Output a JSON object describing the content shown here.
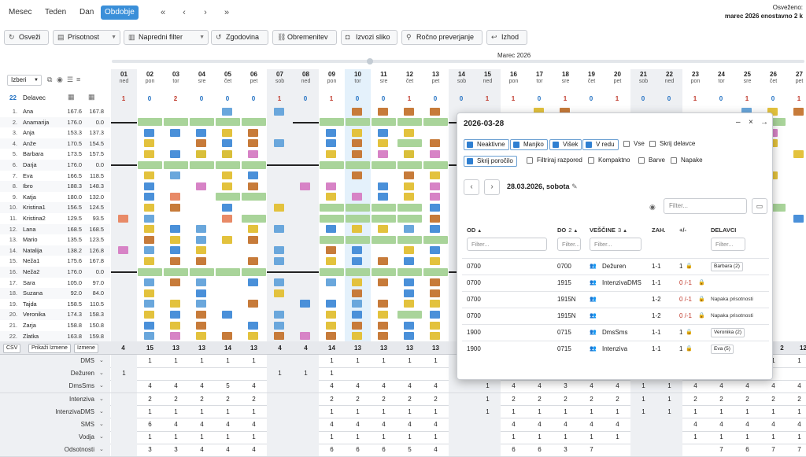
{
  "view_tabs": [
    "Mesec",
    "Teden",
    "Dan",
    "Obdobje"
  ],
  "active_tab": "Obdobje",
  "nav": [
    "«",
    "‹",
    "›",
    "»"
  ],
  "refresh": {
    "label": "Osveženo:",
    "value": "marec 2026 enostavno 2 k"
  },
  "toolbar": {
    "buttons": [
      {
        "label": "Osveži",
        "icon": "refresh-icon"
      },
      {
        "label": "Prisotnost",
        "icon": "document-icon",
        "dropdown": true
      },
      {
        "label": "Napredni filter",
        "icon": "filter-icon",
        "dropdown": true
      },
      {
        "label": "Zgodovina",
        "icon": "history-icon"
      },
      {
        "label": "Obremenitev",
        "icon": "load-icon"
      },
      {
        "label": "Izvozi sliko",
        "icon": "camera-icon"
      },
      {
        "label": "Ročno preverjanje",
        "icon": "check-icon"
      },
      {
        "label": "Izhod",
        "icon": "exit-icon"
      }
    ]
  },
  "month_label": "Marec 2026",
  "grid_header": {
    "select_label": "Izberi",
    "count": "22",
    "employee_col": "Delavec"
  },
  "days": [
    {
      "d": "01",
      "w": "ned"
    },
    {
      "d": "02",
      "w": "pon"
    },
    {
      "d": "03",
      "w": "tor"
    },
    {
      "d": "04",
      "w": "sre"
    },
    {
      "d": "05",
      "w": "čet"
    },
    {
      "d": "06",
      "w": "pet"
    },
    {
      "d": "07",
      "w": "sob"
    },
    {
      "d": "08",
      "w": "ned"
    },
    {
      "d": "09",
      "w": "pon"
    },
    {
      "d": "10",
      "w": "tor"
    },
    {
      "d": "11",
      "w": "sre"
    },
    {
      "d": "12",
      "w": "čet"
    },
    {
      "d": "13",
      "w": "pet"
    },
    {
      "d": "14",
      "w": "sob"
    },
    {
      "d": "15",
      "w": "ned"
    },
    {
      "d": "16",
      "w": "pon"
    },
    {
      "d": "17",
      "w": "tor"
    },
    {
      "d": "18",
      "w": "sre"
    },
    {
      "d": "19",
      "w": "čet"
    },
    {
      "d": "20",
      "w": "pet"
    },
    {
      "d": "21",
      "w": "sob"
    },
    {
      "d": "22",
      "w": "ned"
    },
    {
      "d": "23",
      "w": "pon"
    },
    {
      "d": "24",
      "w": "tor"
    },
    {
      "d": "25",
      "w": "sre"
    },
    {
      "d": "26",
      "w": "čet"
    },
    {
      "d": "27",
      "w": "pet"
    }
  ],
  "day_counts": [
    "1",
    "0",
    "2",
    "0",
    "0",
    "0",
    "1",
    "0",
    "1",
    "0",
    "0",
    "1",
    "0",
    "0",
    "1",
    "1",
    "0",
    "1",
    "0",
    "1",
    "0",
    "0",
    "1",
    "0",
    "1",
    "0",
    "1"
  ],
  "employees": [
    {
      "no": "1.",
      "name": "Ana",
      "h1": "167.6",
      "h2": "167.8"
    },
    {
      "no": "2.",
      "name": "Anamarija",
      "h1": "176.0",
      "h2": "0.0"
    },
    {
      "no": "3.",
      "name": "Anja",
      "h1": "153.3",
      "h2": "137.3"
    },
    {
      "no": "4.",
      "name": "Anže",
      "h1": "170.5",
      "h2": "154.5"
    },
    {
      "no": "5.",
      "name": "Barbara",
      "h1": "173.5",
      "h2": "157.5"
    },
    {
      "no": "6.",
      "name": "Darja",
      "h1": "176.0",
      "h2": "0.0"
    },
    {
      "no": "7.",
      "name": "Eva",
      "h1": "166.5",
      "h2": "118.5"
    },
    {
      "no": "8.",
      "name": "Ibro",
      "h1": "188.3",
      "h2": "148.3"
    },
    {
      "no": "9.",
      "name": "Katja",
      "h1": "180.0",
      "h2": "132.0"
    },
    {
      "no": "10.",
      "name": "Kristina1",
      "h1": "156.5",
      "h2": "124.5"
    },
    {
      "no": "11.",
      "name": "Kristina2",
      "h1": "129.5",
      "h2": "93.5"
    },
    {
      "no": "12.",
      "name": "Lana",
      "h1": "168.5",
      "h2": "168.5"
    },
    {
      "no": "13.",
      "name": "Mario",
      "h1": "135.5",
      "h2": "123.5"
    },
    {
      "no": "14.",
      "name": "Natalija",
      "h1": "138.2",
      "h2": "126.8"
    },
    {
      "no": "15.",
      "name": "Neža1",
      "h1": "175.6",
      "h2": "167.8"
    },
    {
      "no": "16.",
      "name": "Neža2",
      "h1": "176.0",
      "h2": "0.0"
    },
    {
      "no": "17.",
      "name": "Sara",
      "h1": "105.0",
      "h2": "97.0"
    },
    {
      "no": "18.",
      "name": "Suzana",
      "h1": "92.0",
      "h2": "84.0"
    },
    {
      "no": "19.",
      "name": "Tajda",
      "h1": "158.5",
      "h2": "110.5"
    },
    {
      "no": "20.",
      "name": "Veronika",
      "h1": "174.3",
      "h2": "158.3"
    },
    {
      "no": "21.",
      "name": "Zarja",
      "h1": "158.8",
      "h2": "150.8"
    },
    {
      "no": "22.",
      "name": "Zlatka",
      "h1": "163.8",
      "h2": "159.8"
    }
  ],
  "summary": {
    "buttons": [
      "CSV",
      "Prikaži Izmene",
      "Izmene"
    ],
    "values": [
      "4",
      "15",
      "13",
      "13",
      "14",
      "13",
      "4",
      "4",
      "14",
      "13",
      "13",
      "13",
      "13"
    ],
    "right": [
      "2",
      "12"
    ]
  },
  "bottom_rows": [
    {
      "label": "DMS",
      "vals": [
        "",
        "1",
        "1",
        "1",
        "1",
        "1",
        "",
        "",
        "1",
        "1",
        "1",
        "1",
        "1",
        "",
        "1",
        "1",
        "1",
        "1",
        "1",
        "1",
        "",
        "",
        "1",
        "1",
        "1",
        "1",
        "1"
      ]
    },
    {
      "label": "Dežuren",
      "vals": [
        "1",
        "",
        "",
        "",
        "",
        "",
        "1",
        "1",
        "1",
        "",
        "",
        "",
        "",
        "",
        "",
        "",
        "",
        "",
        "",
        "",
        "",
        "",
        "",
        "",
        "",
        "",
        ""
      ]
    },
    {
      "label": "DmsSms",
      "vals": [
        "",
        "4",
        "4",
        "4",
        "5",
        "4",
        "",
        "",
        "4",
        "4",
        "4",
        "4",
        "4",
        "",
        "1",
        "4",
        "4",
        "3",
        "4",
        "4",
        "1",
        "1",
        "4",
        "4",
        "4",
        "4",
        "4"
      ]
    },
    {
      "label": "Intenziva",
      "vals": [
        "",
        "2",
        "2",
        "2",
        "2",
        "2",
        "",
        "",
        "2",
        "2",
        "2",
        "2",
        "2",
        "",
        "1",
        "2",
        "2",
        "2",
        "2",
        "2",
        "1",
        "1",
        "2",
        "2",
        "2",
        "2",
        "2"
      ]
    },
    {
      "label": "IntenzivaDMS",
      "vals": [
        "",
        "1",
        "1",
        "1",
        "1",
        "1",
        "",
        "",
        "1",
        "1",
        "1",
        "1",
        "1",
        "",
        "1",
        "1",
        "1",
        "1",
        "1",
        "1",
        "1",
        "1",
        "1",
        "1",
        "1",
        "1",
        "1"
      ]
    },
    {
      "label": "SMS",
      "vals": [
        "",
        "6",
        "4",
        "4",
        "4",
        "4",
        "",
        "",
        "4",
        "4",
        "4",
        "4",
        "4",
        "",
        "",
        "4",
        "4",
        "4",
        "4",
        "4",
        "",
        "",
        "4",
        "4",
        "4",
        "4",
        "4"
      ]
    },
    {
      "label": "Vodja",
      "vals": [
        "",
        "1",
        "1",
        "1",
        "1",
        "1",
        "",
        "",
        "1",
        "1",
        "1",
        "1",
        "1",
        "",
        "",
        "1",
        "1",
        "1",
        "1",
        "1",
        "",
        "",
        "1",
        "1",
        "1",
        "1",
        "1"
      ]
    },
    {
      "label": "Odsotnosti",
      "vals": [
        "",
        "3",
        "3",
        "4",
        "4",
        "4",
        "",
        "",
        "6",
        "6",
        "6",
        "5",
        "4",
        "",
        "",
        "6",
        "6",
        "3",
        "7",
        "",
        "",
        "",
        "",
        "7",
        "6",
        "7",
        "7"
      ]
    }
  ],
  "dialog": {
    "title": "2026-03-28",
    "controls": [
      "–",
      "×",
      "→"
    ],
    "checks": [
      {
        "label": "Neaktivne",
        "on": true
      },
      {
        "label": "Manjko",
        "on": true
      },
      {
        "label": "Višek",
        "on": true
      },
      {
        "label": "V redu",
        "on": true
      },
      {
        "label": "Vse",
        "on": false
      },
      {
        "label": "Skrij delavce",
        "on": false
      },
      {
        "label": "Skrij poročilo",
        "on": true
      },
      {
        "label": "Filtriraj razpored",
        "on": false
      },
      {
        "label": "Kompaktno",
        "on": false
      },
      {
        "label": "Barve",
        "on": false
      },
      {
        "label": "Napake",
        "on": false
      }
    ],
    "date": "28.03.2026, sobota",
    "filter_placeholder": "Filter...",
    "columns": [
      "OD",
      "DO",
      "VEŠČINE",
      "ZAH.",
      "+/-",
      "DELAVCI"
    ],
    "col_suffix": {
      "DO": "2",
      "VEŠČINE": "3"
    },
    "rows": [
      {
        "od": "0700",
        "do": "0700",
        "skill": "Dežuren",
        "zah": "1-1",
        "pm": "1",
        "pm_red": false,
        "worker": "Barbara (2)",
        "tag": true
      },
      {
        "od": "0700",
        "do": "1915",
        "skill": "IntenzivaDMS",
        "zah": "1-1",
        "pm": "0 /-1",
        "pm_red": true,
        "worker": "",
        "tag": false
      },
      {
        "od": "0700",
        "do": "1915N",
        "skill": "",
        "zah": "1-2",
        "pm": "0 /-1",
        "pm_red": true,
        "worker": "Napaka prisotnosti",
        "tag": false
      },
      {
        "od": "0700",
        "do": "1915N",
        "skill": "",
        "zah": "1-2",
        "pm": "0 /-1",
        "pm_red": true,
        "worker": "Napaka prisotnosti",
        "tag": false
      },
      {
        "od": "1900",
        "do": "0715",
        "skill": "DmsSms",
        "zah": "1-1",
        "pm": "1",
        "pm_red": false,
        "worker": "Veronika (2)",
        "tag": true
      },
      {
        "od": "1900",
        "do": "0715",
        "skill": "Intenziva",
        "zah": "1-1",
        "pm": "1",
        "pm_red": false,
        "worker": "Eva (5)",
        "tag": true
      }
    ]
  },
  "colors": {
    "accent": "#3a8fd9",
    "ds": "#6aa7dc",
    "s": "#e3c23d",
    "in": "#4a90d9",
    "green": "#a9d49a",
    "d": "#c77b3a",
    "nz": "#d783c6",
    "id": "#e88a67"
  }
}
